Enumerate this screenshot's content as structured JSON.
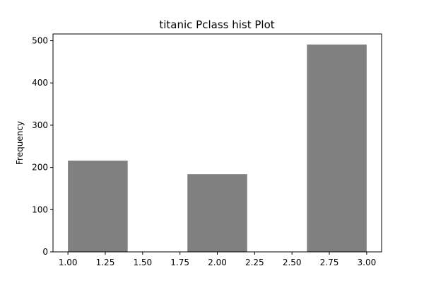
{
  "chart_data": {
    "type": "bar",
    "title": "titanic Pclass hist Plot",
    "xlabel": "",
    "ylabel": "Frequency",
    "xlim": [
      0.9,
      3.1
    ],
    "ylim": [
      0,
      516
    ],
    "bar_color": "#808080",
    "grid": false,
    "bins": [
      {
        "start": 1.0,
        "end": 1.4,
        "value": 216
      },
      {
        "start": 1.8,
        "end": 2.2,
        "value": 184
      },
      {
        "start": 2.6,
        "end": 3.0,
        "value": 491
      }
    ],
    "x_ticks": [
      1.0,
      1.25,
      1.5,
      1.75,
      2.0,
      2.25,
      2.5,
      2.75,
      3.0
    ],
    "x_tick_labels": [
      "1.00",
      "1.25",
      "1.50",
      "1.75",
      "2.00",
      "2.25",
      "2.50",
      "2.75",
      "3.00"
    ],
    "y_ticks": [
      0,
      100,
      200,
      300,
      400,
      500
    ],
    "y_tick_labels": [
      "0",
      "100",
      "200",
      "300",
      "400",
      "500"
    ]
  }
}
